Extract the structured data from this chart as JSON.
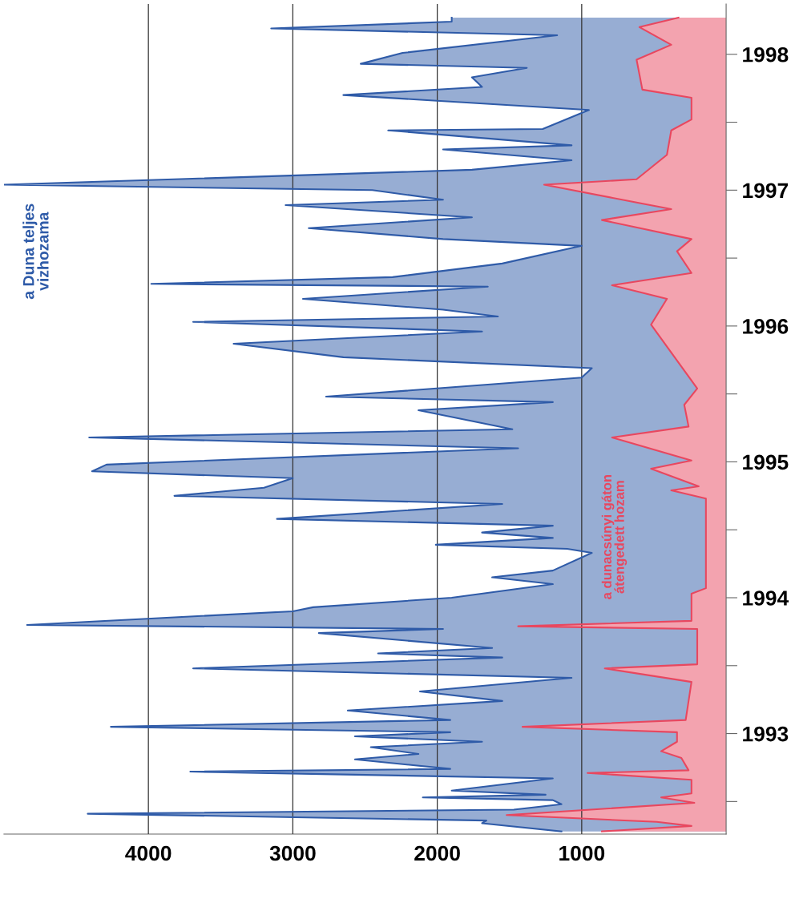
{
  "chart_data": {
    "type": "area",
    "orientation": "horizontal",
    "ylim": [
      1992.76,
      1998.87
    ],
    "yticks": [
      {
        "value": 1993,
        "label": null
      },
      {
        "value": 1993.5,
        "label": "1993"
      },
      {
        "value": 1994,
        "label": null
      },
      {
        "value": 1994.5,
        "label": "1994"
      },
      {
        "value": 1995,
        "label": null
      },
      {
        "value": 1995.5,
        "label": "1995"
      },
      {
        "value": 1996,
        "label": null
      },
      {
        "value": 1996.5,
        "label": "1996"
      },
      {
        "value": 1997,
        "label": null
      },
      {
        "value": 1997.5,
        "label": "1997"
      },
      {
        "value": 1998,
        "label": null
      },
      {
        "value": 1998.5,
        "label": "1998"
      }
    ],
    "xlim": [
      5000,
      0
    ],
    "xticks": [
      1000,
      2000,
      3000,
      4000
    ],
    "grid": "x",
    "legend": false,
    "series": [
      {
        "name": "a Duna teljes vizhozama",
        "color": "#2f5ba8",
        "x": [
          1992.78,
          1992.84,
          1992.86,
          1992.91,
          1992.94,
          1992.98,
          1993.01,
          1993.03,
          1993.05,
          1993.08,
          1993.17,
          1993.22,
          1993.24,
          1993.31,
          1993.35,
          1993.4,
          1993.44,
          1993.48,
          1993.51,
          1993.55,
          1993.6,
          1993.67,
          1993.74,
          1993.81,
          1993.91,
          1993.98,
          1994.06,
          1994.09,
          1994.13,
          1994.24,
          1994.27,
          1994.3,
          1994.4,
          1994.43,
          1994.5,
          1994.6,
          1994.65,
          1994.7,
          1994.83,
          1994.86,
          1994.89,
          1994.94,
          1994.98,
          1995.03,
          1995.08,
          1995.19,
          1995.25,
          1995.31,
          1995.38,
          1995.43,
          1995.48,
          1995.6,
          1995.68,
          1995.74,
          1995.88,
          1995.94,
          1995.98,
          1996.12,
          1996.19,
          1996.27,
          1996.37,
          1996.46,
          1996.53,
          1996.57,
          1996.62,
          1996.7,
          1996.79,
          1996.81,
          1996.86,
          1996.96,
          1997.09,
          1997.14,
          1997.22,
          1997.3,
          1997.39,
          1997.43,
          1997.5,
          1997.54,
          1997.65,
          1997.72,
          1997.8,
          1997.83,
          1997.94,
          1997.95,
          1998.09,
          1998.2,
          1998.26,
          1998.33,
          1998.4,
          1998.43,
          1998.51,
          1998.64,
          1998.69,
          1998.74,
          1998.77
        ],
        "values": [
          1140,
          1690,
          1660,
          4420,
          1470,
          1140,
          1200,
          2100,
          1250,
          1900,
          1200,
          3710,
          1910,
          2570,
          2130,
          2460,
          1690,
          2570,
          1910,
          4260,
          1910,
          2620,
          1550,
          2120,
          1070,
          3690,
          1550,
          2410,
          1620,
          2820,
          1960,
          4840,
          3000,
          2860,
          1900,
          1200,
          1620,
          1200,
          930,
          1100,
          2010,
          1200,
          1690,
          1200,
          3110,
          1550,
          3820,
          3200,
          3000,
          4390,
          4290,
          1440,
          4410,
          1480,
          2130,
          1200,
          2770,
          1000,
          930,
          2650,
          3410,
          1690,
          3690,
          1580,
          1960,
          2930,
          1650,
          3980,
          2310,
          1550,
          1000,
          1960,
          2890,
          1760,
          3050,
          1960,
          2450,
          5000,
          1760,
          1070,
          1960,
          1070,
          2340,
          1270,
          950,
          2650,
          1690,
          1760,
          1380,
          2530,
          2240,
          1170,
          3150,
          1900,
          1900
        ]
      },
      {
        "name": "a dunacsúnyi gáton átengedett hozam",
        "color": "#e8475f",
        "x": [
          1992.78,
          1992.82,
          1992.85,
          1992.9,
          1992.99,
          1993.03,
          1993.06,
          1993.16,
          1993.21,
          1993.23,
          1993.32,
          1993.37,
          1993.44,
          1993.51,
          1993.55,
          1993.6,
          1993.88,
          1993.98,
          1994.01,
          1994.27,
          1994.29,
          1994.33,
          1994.53,
          1994.57,
          1995.23,
          1995.29,
          1995.32,
          1995.45,
          1995.51,
          1995.68,
          1995.76,
          1995.92,
          1996.04,
          1996.51,
          1996.7,
          1996.8,
          1996.89,
          1997.05,
          1997.14,
          1997.28,
          1997.36,
          1997.54,
          1997.58,
          1997.76,
          1997.94,
          1998.02,
          1998.18,
          1998.24,
          1998.46,
          1998.57,
          1998.7,
          1998.77
        ],
        "values": [
          860,
          240,
          480,
          1520,
          220,
          450,
          240,
          240,
          960,
          260,
          310,
          450,
          340,
          340,
          1410,
          280,
          240,
          840,
          200,
          200,
          1440,
          240,
          240,
          140,
          140,
          380,
          190,
          520,
          240,
          790,
          260,
          290,
          200,
          520,
          410,
          790,
          240,
          340,
          240,
          860,
          380,
          1260,
          620,
          410,
          380,
          240,
          240,
          580,
          620,
          380,
          600,
          330
        ]
      }
    ]
  }
}
